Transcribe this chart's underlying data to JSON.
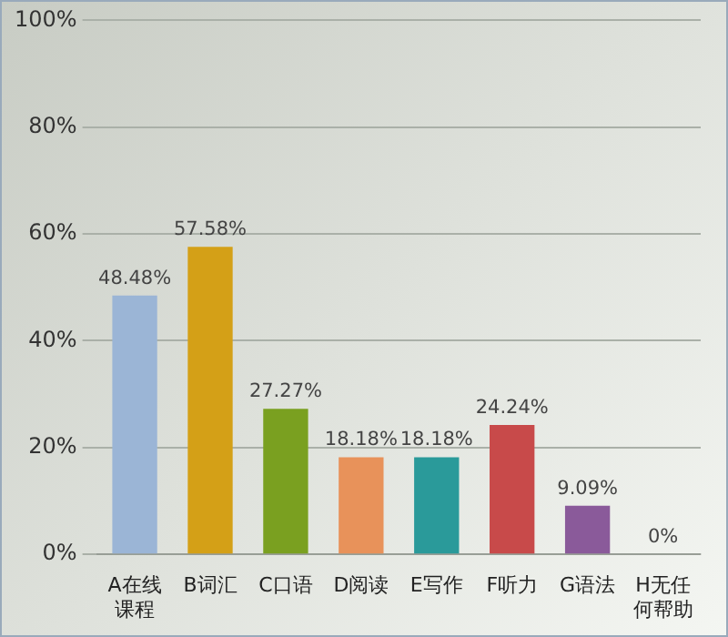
{
  "chart_data": {
    "type": "bar",
    "categories": [
      "A在线课程",
      "B词汇",
      "C口语",
      "D阅读",
      "E写作",
      "F听力",
      "G语法",
      "H无任何帮助"
    ],
    "values": [
      48.48,
      57.58,
      27.27,
      18.18,
      18.18,
      24.24,
      9.09,
      0
    ],
    "colors": [
      "#9bb5d6",
      "#d4a017",
      "#7aa020",
      "#e8925a",
      "#2a9a9a",
      "#c84a4a",
      "#8a5a9a",
      "#7a9a50"
    ],
    "value_labels": [
      "48.48%",
      "57.58%",
      "27.27%",
      "18.18%",
      "18.18%",
      "24.24%",
      "9.09%",
      "0%"
    ],
    "ylim": [
      0,
      100
    ],
    "yticks": [
      {
        "value": 0,
        "label": "0%"
      },
      {
        "value": 20,
        "label": "20%"
      },
      {
        "value": 40,
        "label": "40%"
      },
      {
        "value": 60,
        "label": "60%"
      },
      {
        "value": 80,
        "label": "80%"
      },
      {
        "value": 100,
        "label": "100%"
      }
    ],
    "grid": "y"
  }
}
